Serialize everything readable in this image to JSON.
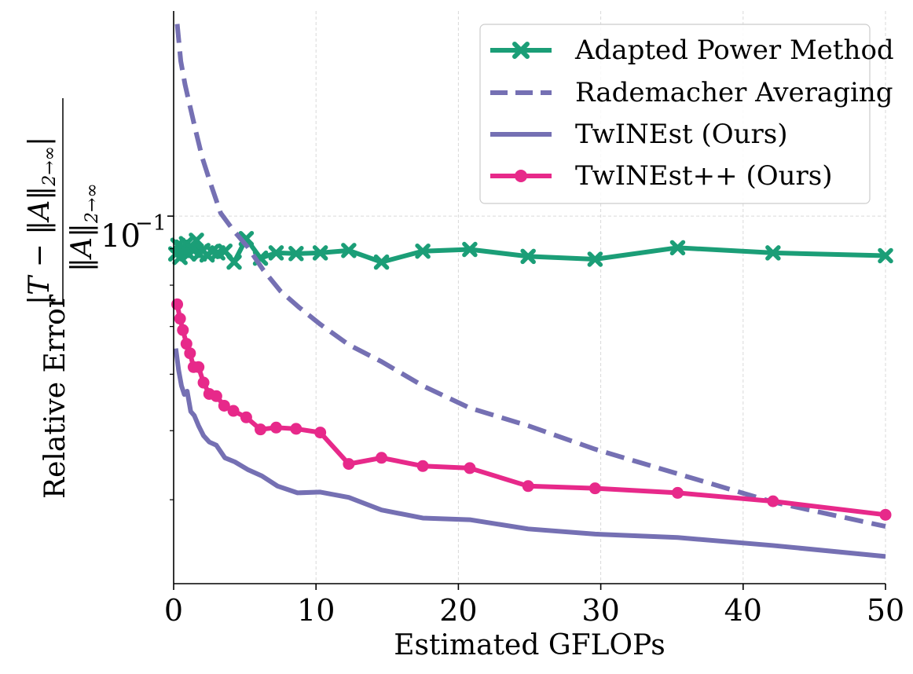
{
  "chart_data": {
    "type": "line",
    "title": "",
    "xlabel": "Estimated GFLOPs",
    "ylabel_prefix": "Relative Error",
    "ylabel_numerator": "|T − ‖A‖",
    "ylabel_numerator_sub": "2→∞",
    "ylabel_numerator_end": "|",
    "ylabel_denominator": "‖A‖",
    "ylabel_denominator_sub": "2→∞",
    "xlim": [
      0,
      50
    ],
    "ylim": [
      0.0305,
      0.194
    ],
    "yscale": "log",
    "xticks": [
      0,
      10,
      20,
      30,
      40,
      50
    ],
    "xtick_labels": [
      "0",
      "10",
      "20",
      "30",
      "40",
      "50"
    ],
    "yticks": [
      0.1
    ],
    "ytick_labels": [
      "10",
      "−1"
    ],
    "grid": true,
    "legend_position": "top-right",
    "series": [
      {
        "name": "Adapted Power Method",
        "color": "#1b9e77",
        "style": "solid",
        "marker": "x",
        "x": [
          0.15,
          0.3,
          0.45,
          0.6,
          0.75,
          0.9,
          1.05,
          1.2,
          1.4,
          1.6,
          1.8,
          2.05,
          2.35,
          2.7,
          3.1,
          3.6,
          4.25,
          5.1,
          6.1,
          7.2,
          8.6,
          10.3,
          12.3,
          14.6,
          17.5,
          20.8,
          24.9,
          29.6,
          35.4,
          42.1,
          50.0
        ],
        "y": [
          0.0885,
          0.091,
          0.0875,
          0.0905,
          0.0895,
          0.0915,
          0.0885,
          0.0905,
          0.0895,
          0.0925,
          0.0885,
          0.0895,
          0.0882,
          0.0892,
          0.0888,
          0.0893,
          0.0862,
          0.093,
          0.0873,
          0.0888,
          0.0886,
          0.0888,
          0.0895,
          0.0862,
          0.0893,
          0.0898,
          0.0878,
          0.087,
          0.0903,
          0.0888,
          0.088
        ]
      },
      {
        "name": "Rademacher Averaging",
        "color": "#7570b3",
        "style": "dashed",
        "marker": "none",
        "x": [
          0.25,
          0.5,
          0.8,
          1.1,
          1.5,
          2.0,
          2.6,
          3.3,
          4.2,
          5.2,
          6.3,
          7.5,
          8.8,
          10.3,
          12.3,
          14.6,
          17.5,
          20.8,
          24.9,
          29.6,
          35.4,
          42.1,
          50.0
        ],
        "y": [
          0.186,
          0.165,
          0.153,
          0.144,
          0.133,
          0.121,
          0.111,
          0.101,
          0.0955,
          0.0905,
          0.084,
          0.0785,
          0.0745,
          0.0705,
          0.066,
          0.0625,
          0.0578,
          0.0538,
          0.0508,
          0.0471,
          0.0435,
          0.0397,
          0.0367
        ]
      },
      {
        "name": "TwINEst (Ours)",
        "color": "#7570b3",
        "style": "solid",
        "marker": "none",
        "x": [
          0.15,
          0.35,
          0.55,
          0.75,
          0.95,
          1.2,
          1.45,
          1.75,
          2.1,
          2.5,
          3.0,
          3.6,
          4.3,
          5.2,
          6.2,
          7.3,
          8.7,
          10.3,
          12.3,
          14.6,
          17.5,
          20.8,
          24.9,
          29.6,
          35.4,
          42.1,
          50.0
        ],
        "y": [
          0.0652,
          0.0608,
          0.0578,
          0.0562,
          0.0568,
          0.0532,
          0.0525,
          0.0508,
          0.0492,
          0.0482,
          0.0477,
          0.0458,
          0.0452,
          0.0441,
          0.0432,
          0.0418,
          0.0409,
          0.041,
          0.0403,
          0.0387,
          0.0377,
          0.0375,
          0.0364,
          0.0358,
          0.0354,
          0.0345,
          0.0333
        ]
      },
      {
        "name": "TwINEst++ (Ours)",
        "color": "#e7298a",
        "style": "solid",
        "marker": "o",
        "x": [
          0.25,
          0.45,
          0.65,
          0.9,
          1.15,
          1.4,
          1.75,
          2.1,
          2.5,
          3.0,
          3.55,
          4.2,
          5.1,
          6.1,
          7.2,
          8.6,
          10.3,
          12.3,
          14.6,
          17.5,
          20.8,
          24.9,
          29.6,
          35.4,
          42.1,
          50.0
        ],
        "y": [
          0.0752,
          0.0718,
          0.0692,
          0.0662,
          0.0642,
          0.0614,
          0.0614,
          0.0584,
          0.0563,
          0.0559,
          0.0542,
          0.0533,
          0.0522,
          0.0502,
          0.0505,
          0.0503,
          0.0497,
          0.0449,
          0.0458,
          0.0446,
          0.0443,
          0.0418,
          0.0415,
          0.0409,
          0.0398,
          0.0381
        ]
      }
    ]
  }
}
